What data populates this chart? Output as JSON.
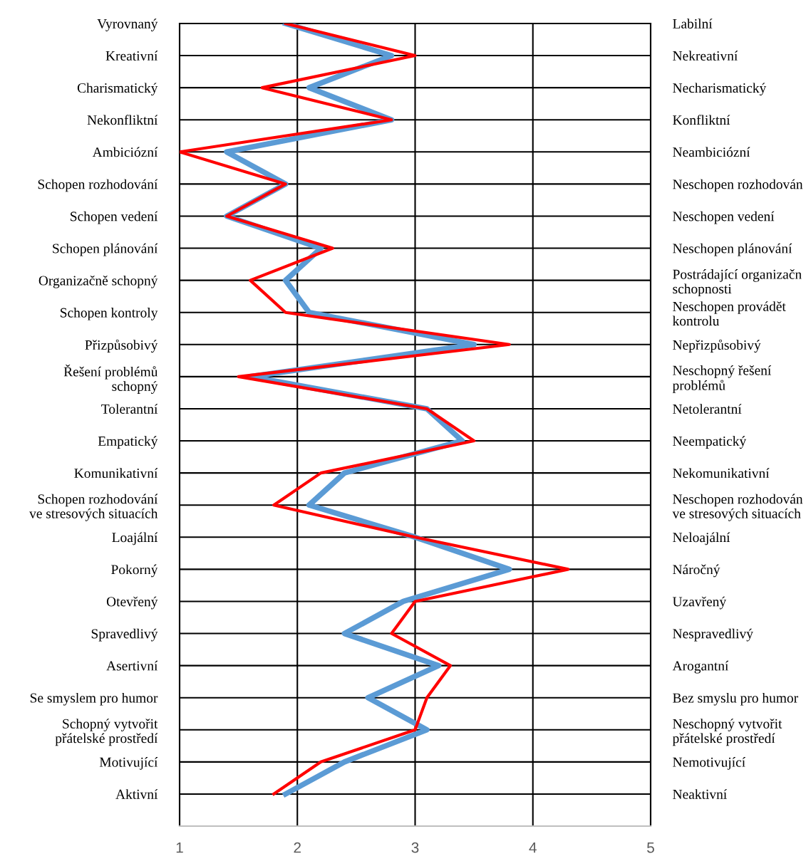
{
  "chart_data": {
    "type": "line",
    "categories": [
      "Vyrovnaný",
      "Kreativní",
      "Charismatický",
      "Nekonfliktní",
      "Ambiciózní",
      "Schopen rozhodování",
      "Schopen vedení",
      "Schopen plánování",
      "Organizačně schopný",
      "Schopen kontroly",
      "Přizpůsobivý",
      "Řešení problémů\nschopný",
      "Tolerantní",
      "Empatický",
      "Komunikativní",
      "Schopen rozhodování\nve stresových situacích",
      "Loajální",
      "Pokorný",
      "Otevřený",
      "Spravedlivý",
      "Asertivní",
      "Se smyslem pro humor",
      "Schopný vytvořit\npřátelské prostředí",
      "Motivující",
      "Aktivní"
    ],
    "y2_categories": [
      "Labilní",
      "Nekreativní",
      "Necharismatický",
      "Konfliktní",
      "Neambiciózní",
      "Neschopen rozhodován",
      "Neschopen vedení",
      "Neschopen plánování",
      "Postrádající organizačn\nschopnosti",
      "Neschopen provádět\nkontrolu",
      "Nepřizpůsobivý",
      "Neschopný řešení\nproblémů",
      "Netolerantní",
      "Neempatický",
      "Nekomunikativní",
      "Neschopen rozhodován\nve stresových situacích",
      "Neloajální",
      "Náročný",
      "Uzavřený",
      "Nespravedlivý",
      "Arogantní",
      "Bez smyslu pro humor",
      "Neschopný vytvořit\npřátelské prostředí",
      "Nemotivující",
      "Neaktivní"
    ],
    "orientation": "horizontal",
    "series": [
      {
        "color": "#5b9bd5",
        "values": [
          1.9,
          2.8,
          2.1,
          2.8,
          1.4,
          1.9,
          1.4,
          2.2,
          1.9,
          2.1,
          3.5,
          1.6,
          3.1,
          3.4,
          2.4,
          2.1,
          3.0,
          3.8,
          2.9,
          2.4,
          3.2,
          2.6,
          3.1,
          2.4,
          1.9
        ]
      },
      {
        "color": "#ff0000",
        "values": [
          1.9,
          3.0,
          1.7,
          2.8,
          1.0,
          1.9,
          1.4,
          2.3,
          1.6,
          1.9,
          3.8,
          1.5,
          3.1,
          3.5,
          2.2,
          1.8,
          3.0,
          4.3,
          3.0,
          2.8,
          3.3,
          3.1,
          3.0,
          2.2,
          1.8
        ]
      }
    ],
    "xlim": [
      1,
      5
    ],
    "xticks": [
      1,
      2,
      3,
      4,
      5
    ],
    "grid": true,
    "legend": false,
    "marker": "none",
    "line_style": "solid"
  }
}
